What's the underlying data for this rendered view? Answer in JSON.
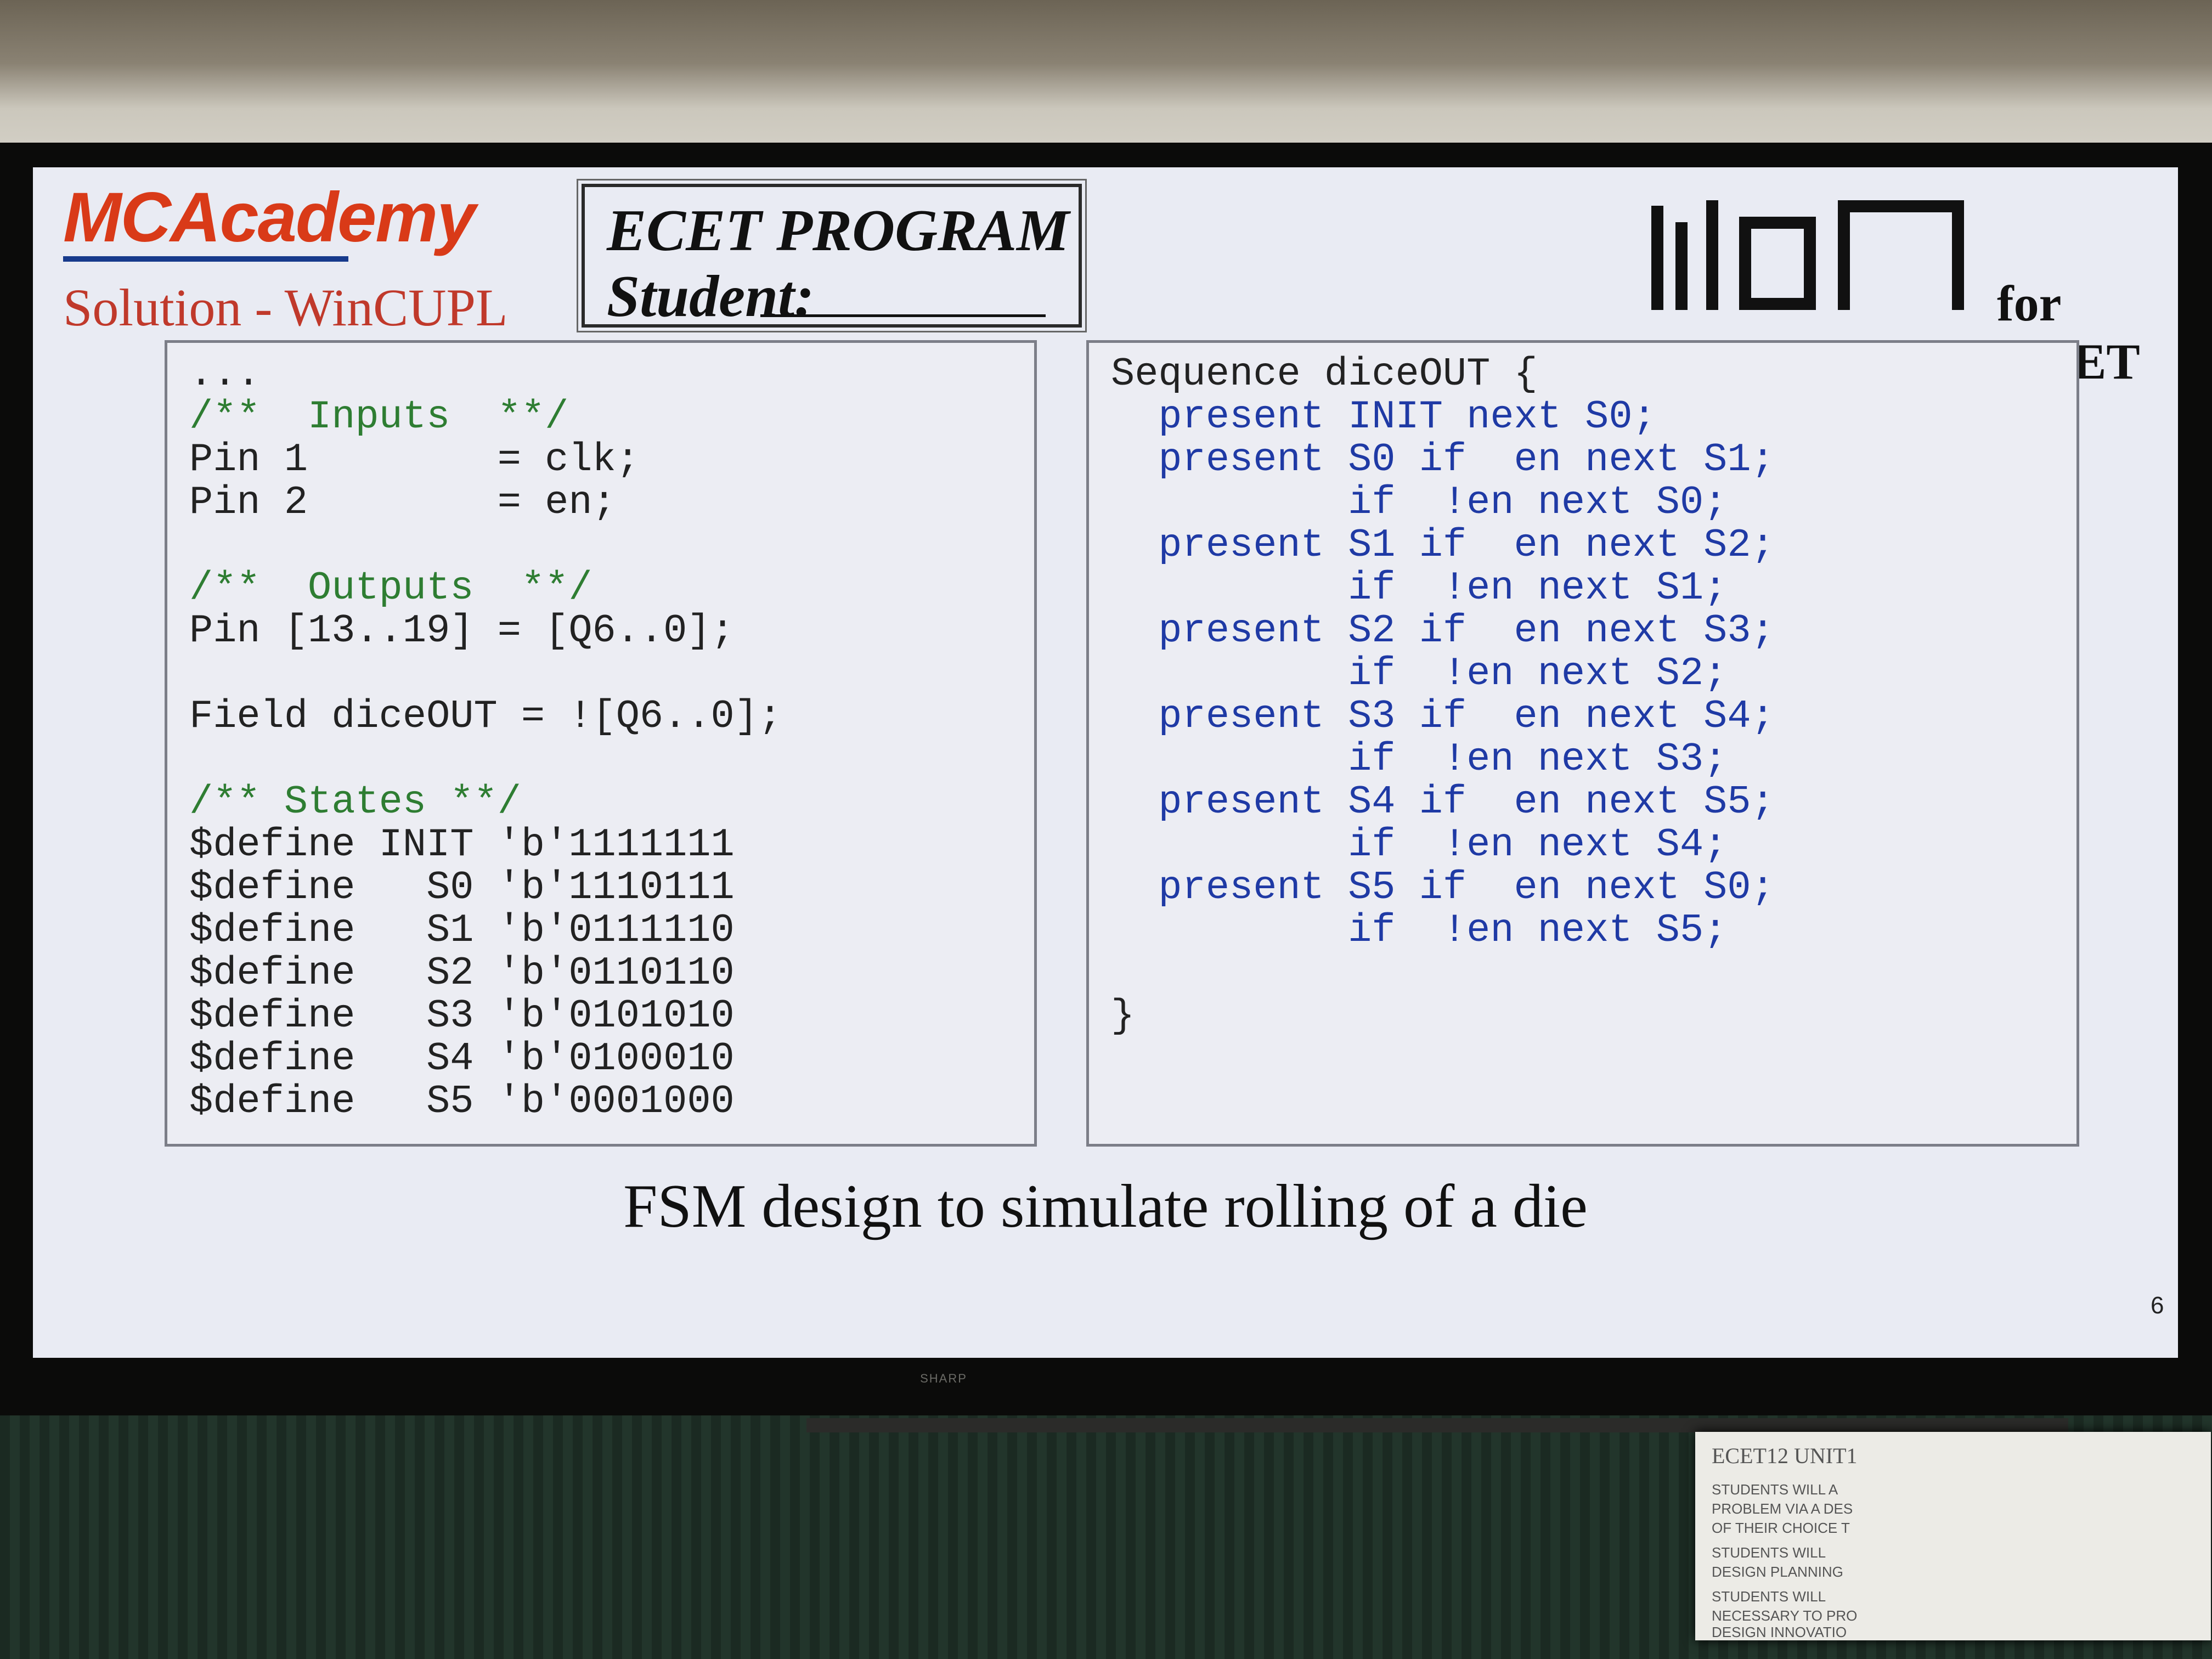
{
  "header": {
    "logo_text": "MCAcademy",
    "subtitle": "Solution - WinCUPL",
    "program_title": "ECET PROGRAM",
    "student_label": "Student:",
    "mcm_tagline": "for SMET"
  },
  "left_panel": {
    "lines": [
      "...",
      "/**  Inputs  **/",
      "Pin 1        = clk;",
      "Pin 2        = en;",
      "",
      "/**  Outputs  **/",
      "Pin [13..19] = [Q6..0];",
      "",
      "Field diceOUT = ![Q6..0];",
      "",
      "/** States **/",
      "$define INIT 'b'1111111",
      "$define   S0 'b'1110111",
      "$define   S1 'b'0111110",
      "$define   S2 'b'0110110",
      "$define   S3 'b'0101010",
      "$define   S4 'b'0100010",
      "$define   S5 'b'0001000"
    ]
  },
  "right_panel": {
    "lines": [
      "Sequence diceOUT {",
      "  present INIT next S0;",
      "  present S0 if  en next S1;",
      "          if  !en next S0;",
      "  present S1 if  en next S2;",
      "          if  !en next S1;",
      "  present S2 if  en next S3;",
      "          if  !en next S2;",
      "  present S3 if  en next S4;",
      "          if  !en next S3;",
      "  present S4 if  en next S5;",
      "          if  !en next S4;",
      "  present S5 if  en next S0;",
      "          if  !en next S5;",
      "",
      "}"
    ]
  },
  "caption": "FSM design to simulate rolling of a die",
  "page_number": "6",
  "monitor_brand": "SHARP",
  "notice": {
    "title": "ECET12 UNIT1",
    "lines": [
      "STUDENTS WILL A",
      "PROBLEM VIA A DES",
      "OF THEIR CHOICE T",
      "STUDENTS WILL",
      "DESIGN PLANNING",
      "STUDENTS WILL",
      "NECESSARY TO PRO",
      "DESIGN INNOVATIO"
    ]
  }
}
